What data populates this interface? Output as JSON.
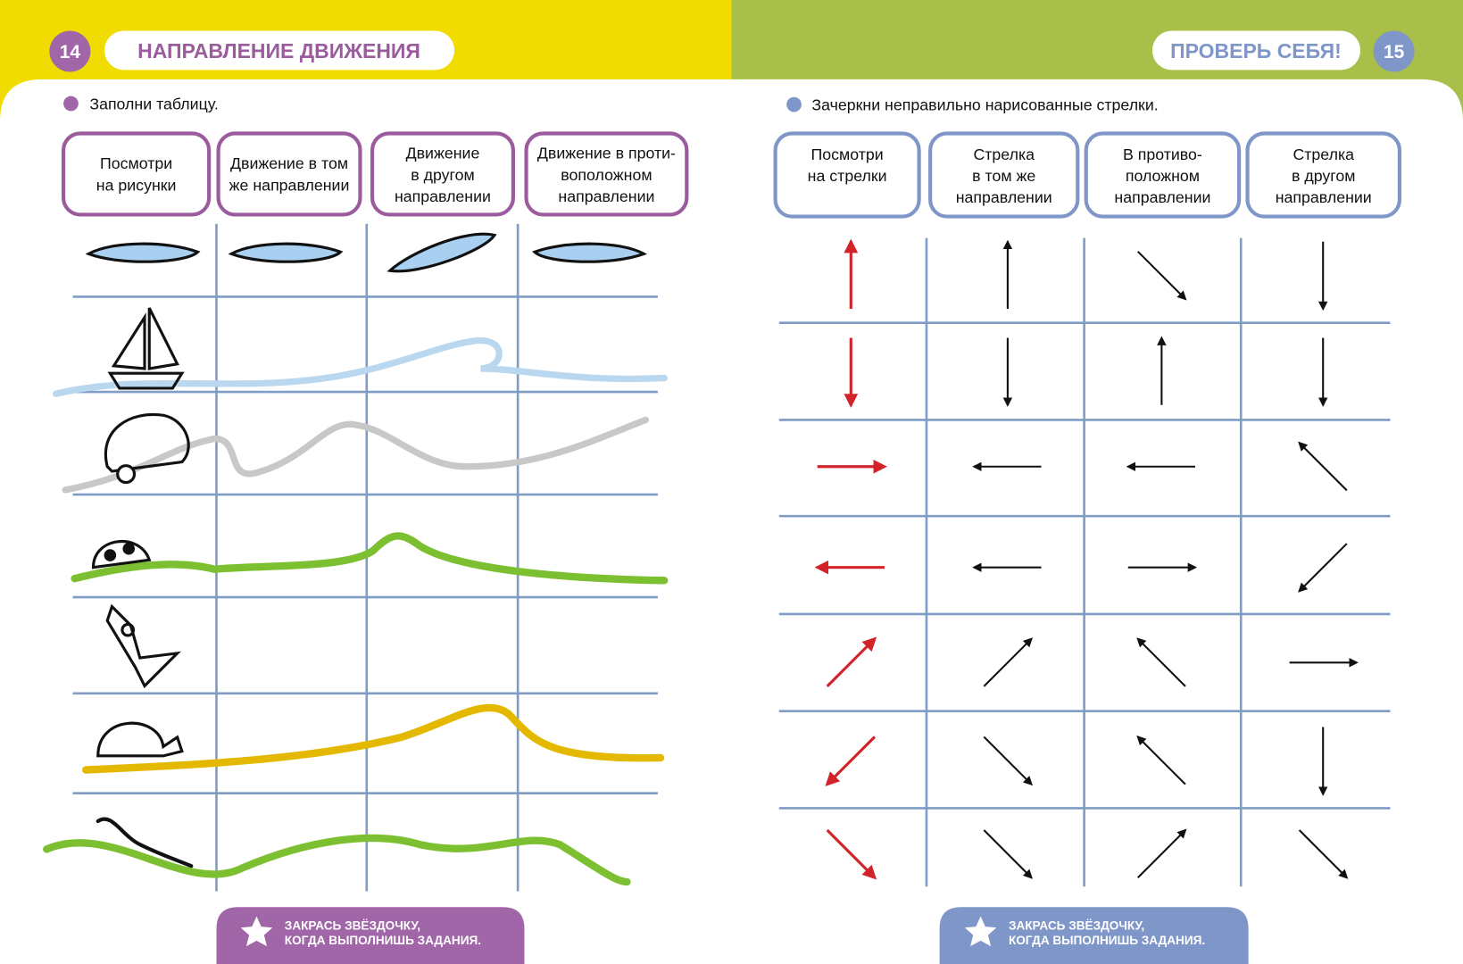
{
  "left": {
    "page_number": "14",
    "title": "НАПРАВЛЕНИЕ ДВИЖЕНИЯ",
    "instruction": "Заполни таблицу.",
    "columns": [
      [
        "Посмотри",
        "на рисунки"
      ],
      [
        "Движение в том",
        "же направлении"
      ],
      [
        "Движение",
        "в другом",
        "направлении"
      ],
      [
        "Движение в проти-",
        "воположном",
        "направлении"
      ]
    ],
    "footer": [
      "ЗАКРАСЬ ЗВЁЗДОЧКУ,",
      "КОГДА ВЫПОЛНИШЬ ЗАДАНИЯ."
    ]
  },
  "right": {
    "page_number": "15",
    "title": "ПРОВЕРЬ СЕБЯ!",
    "instruction": "Зачеркни неправильно нарисованные стрелки.",
    "columns": [
      [
        "Посмотри",
        "на стрелки"
      ],
      [
        "Стрелка",
        "в том же",
        "направлении"
      ],
      [
        "В противо-",
        "положном",
        "направлении"
      ],
      [
        "Стрелка",
        "в другом",
        "направлении"
      ]
    ],
    "footer": [
      "ЗАКРАСЬ ЗВЁЗДОЧКУ,",
      "КОГДА ВЫПОЛНИШЬ ЗАДАНИЯ."
    ]
  }
}
